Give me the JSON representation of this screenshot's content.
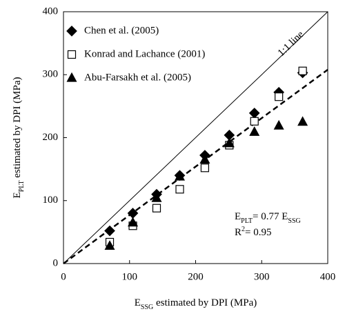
{
  "chart_data": {
    "type": "scatter",
    "x_label": [
      "E",
      "SSG",
      " estimated by DPI (MPa)"
    ],
    "y_label": [
      "E",
      "PLT",
      " estimated by DPI (MPa)"
    ],
    "xlim": [
      0,
      400
    ],
    "ylim": [
      0,
      400
    ],
    "xticks": [
      0,
      100,
      200,
      300,
      400
    ],
    "yticks": [
      0,
      100,
      200,
      300,
      400
    ],
    "legend": "upper left",
    "series": [
      {
        "name": "Chen et al. (2005)",
        "marker": "diamond",
        "filled": true,
        "color": "#000000",
        "x": [
          70,
          105,
          141,
          176,
          214,
          251,
          289,
          326,
          362
        ],
        "values": [
          52,
          80,
          110,
          140,
          172,
          204,
          239,
          272,
          303
        ]
      },
      {
        "name": "Konrad and Lachance (2001)",
        "marker": "square",
        "filled": false,
        "color": "#000000",
        "x": [
          70,
          105,
          141,
          176,
          214,
          251,
          289,
          326,
          362
        ],
        "values": [
          34,
          60,
          88,
          118,
          152,
          188,
          226,
          265,
          306
        ]
      },
      {
        "name": "Abu-Farsakh et al. (2005)",
        "marker": "triangle",
        "filled": true,
        "color": "#000000",
        "x": [
          70,
          105,
          141,
          176,
          214,
          251,
          289,
          326,
          362
        ],
        "values": [
          28,
          65,
          104,
          138,
          165,
          191,
          209,
          219,
          225
        ]
      }
    ],
    "lines": [
      {
        "name": "1:1 line",
        "style": "solid",
        "x": [
          0,
          400
        ],
        "y": [
          0,
          400
        ]
      },
      {
        "style": "dashed",
        "x": [
          0,
          400
        ],
        "y": [
          0,
          308
        ]
      }
    ],
    "fit_equation": [
      "E",
      "PLT",
      "= 0.77 E",
      "SSG"
    ],
    "r_squared": [
      "R",
      "2",
      "= 0.95"
    ]
  }
}
